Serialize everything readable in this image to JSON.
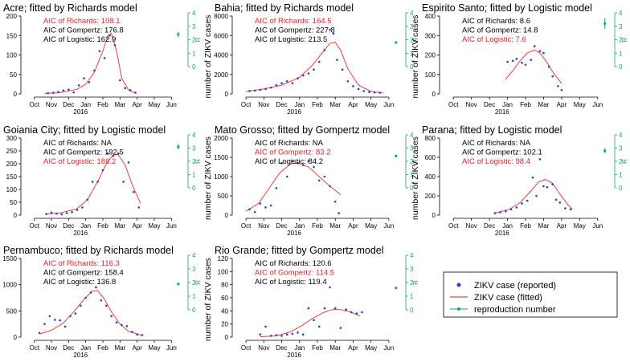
{
  "figure": {
    "month_labels": [
      "Oct",
      "Nov",
      "Dec",
      "Jan",
      "Feb",
      "Mar",
      "Apr",
      "May",
      "Jun"
    ],
    "year_label": "2016",
    "y_axis_label": "number of ZIKV cases",
    "r_axis_label": "R",
    "r_ticks": [
      "0",
      "1",
      "2",
      "3",
      "4"
    ],
    "colors": {
      "points": "#2b3fc8",
      "fit": "#e8404a",
      "best": "#e8202a",
      "r_axis": "#1aa36a",
      "axis": "#000000"
    }
  },
  "legend": {
    "reported": "ZIKV case (reported)",
    "fitted": "ZIKV case (fitted)",
    "reproduction": "reproduction number"
  },
  "chart_data": [
    {
      "type": "scatter",
      "title": "Acre; fitted by Richards model",
      "ylim": [
        0,
        200
      ],
      "yticks": [
        0,
        50,
        100,
        150,
        200
      ],
      "aic": [
        "AIC of Richards: 108.1",
        "AIC of Gompertz: 176.8",
        "AIC of Logistic: 162.9"
      ],
      "best_index": 0,
      "points": [
        [
          1.3,
          2
        ],
        [
          1.6,
          3
        ],
        [
          1.9,
          5
        ],
        [
          2.2,
          9
        ],
        [
          2.5,
          11
        ],
        [
          2.8,
          4
        ],
        [
          3.1,
          22
        ],
        [
          3.4,
          40
        ],
        [
          3.7,
          30
        ],
        [
          4.0,
          60
        ],
        [
          4.3,
          110
        ],
        [
          4.6,
          92
        ],
        [
          4.9,
          150
        ],
        [
          5.2,
          125
        ],
        [
          5.5,
          35
        ],
        [
          5.8,
          15
        ],
        [
          6.1,
          10
        ],
        [
          6.4,
          3
        ]
      ],
      "fit": [
        [
          1.1,
          1
        ],
        [
          2,
          3
        ],
        [
          3,
          12
        ],
        [
          3.5,
          25
        ],
        [
          4,
          55
        ],
        [
          4.5,
          110
        ],
        [
          4.8,
          150
        ],
        [
          5.0,
          155
        ],
        [
          5.3,
          110
        ],
        [
          5.6,
          40
        ],
        [
          6,
          10
        ],
        [
          6.4,
          2
        ]
      ],
      "r": {
        "value": 2.4,
        "low": 2.2,
        "high": 2.6,
        "x": 8.9
      }
    },
    {
      "type": "scatter",
      "title": "Bahia; fitted by Richards model",
      "ylim": [
        0,
        8000
      ],
      "yticks": [
        0,
        2000,
        4000,
        6000,
        8000
      ],
      "aic": [
        "AIC of Richards: 164.5",
        "AIC of Gompertz: 227.8",
        "AIC of Logistic: 213.5"
      ],
      "best_index": 0,
      "points": [
        [
          0.7,
          300
        ],
        [
          1.0,
          350
        ],
        [
          1.3,
          420
        ],
        [
          1.6,
          500
        ],
        [
          1.9,
          650
        ],
        [
          2.2,
          900
        ],
        [
          2.5,
          1100
        ],
        [
          2.8,
          1300
        ],
        [
          3.1,
          1100
        ],
        [
          3.4,
          1600
        ],
        [
          3.7,
          1900
        ],
        [
          4.0,
          2100
        ],
        [
          4.3,
          2500
        ],
        [
          4.6,
          3300
        ],
        [
          4.9,
          4500
        ],
        [
          5.2,
          6600
        ],
        [
          5.4,
          6200
        ],
        [
          5.6,
          3500
        ],
        [
          5.9,
          2500
        ],
        [
          6.2,
          1300
        ],
        [
          6.5,
          800
        ],
        [
          6.8,
          500
        ],
        [
          7.1,
          300
        ],
        [
          7.4,
          200
        ],
        [
          7.7,
          150
        ],
        [
          8.0,
          120
        ]
      ],
      "fit": [
        [
          0.5,
          250
        ],
        [
          1.5,
          500
        ],
        [
          2.5,
          900
        ],
        [
          3.5,
          1700
        ],
        [
          4.2,
          2900
        ],
        [
          4.8,
          4300
        ],
        [
          5.2,
          5200
        ],
        [
          5.5,
          5300
        ],
        [
          5.8,
          4500
        ],
        [
          6.2,
          2600
        ],
        [
          6.8,
          900
        ],
        [
          7.5,
          250
        ],
        [
          8.2,
          80
        ]
      ],
      "r": {
        "value": 1.8,
        "low": 1.75,
        "high": 1.85,
        "x": 8.9
      }
    },
    {
      "type": "scatter",
      "title": "Espirito Santo; fitted by Logistic model",
      "ylim": [
        0,
        400
      ],
      "yticks": [
        0,
        100,
        200,
        300,
        400
      ],
      "aic": [
        "AIC of Richards: 8.6",
        "AIC of Gompertz: 14.8",
        "AIC of Logistic: 7.6"
      ],
      "best_index": 2,
      "points": [
        [
          3.5,
          165
        ],
        [
          3.8,
          170
        ],
        [
          4.0,
          180
        ],
        [
          4.3,
          160
        ],
        [
          4.5,
          150
        ],
        [
          4.8,
          175
        ],
        [
          5.0,
          245
        ],
        [
          5.3,
          220
        ],
        [
          5.5,
          210
        ],
        [
          5.8,
          140
        ],
        [
          6.0,
          90
        ],
        [
          6.3,
          40
        ],
        [
          6.5,
          20
        ]
      ],
      "fit": [
        [
          3.4,
          75
        ],
        [
          3.8,
          120
        ],
        [
          4.2,
          170
        ],
        [
          4.6,
          210
        ],
        [
          5.0,
          225
        ],
        [
          5.3,
          210
        ],
        [
          5.7,
          160
        ],
        [
          6.1,
          100
        ],
        [
          6.5,
          55
        ]
      ],
      "r": {
        "value": 3.2,
        "low": 2.8,
        "high": 3.6,
        "x": 8.9
      }
    },
    {
      "type": "scatter",
      "title": "Goiania City; fitted by Logistic model",
      "ylim": [
        0,
        300
      ],
      "yticks": [
        0,
        50,
        100,
        150,
        200,
        250,
        300
      ],
      "aic": [
        "AIC of Richards: NA",
        "AIC of Gompertz: 192.5",
        "AIC of Logistic: 186.2"
      ],
      "best_index": 2,
      "points": [
        [
          1.2,
          4
        ],
        [
          1.5,
          10
        ],
        [
          1.8,
          6
        ],
        [
          2.1,
          3
        ],
        [
          2.4,
          8
        ],
        [
          2.7,
          12
        ],
        [
          3.0,
          20
        ],
        [
          3.3,
          30
        ],
        [
          3.6,
          60
        ],
        [
          3.9,
          130
        ],
        [
          4.2,
          130
        ],
        [
          4.5,
          175
        ],
        [
          4.8,
          240
        ],
        [
          5.1,
          230
        ],
        [
          5.4,
          240
        ],
        [
          5.7,
          130
        ],
        [
          6.0,
          205
        ],
        [
          6.3,
          90
        ],
        [
          6.6,
          30
        ]
      ],
      "fit": [
        [
          1.2,
          4
        ],
        [
          2,
          8
        ],
        [
          3,
          25
        ],
        [
          3.6,
          60
        ],
        [
          4.2,
          130
        ],
        [
          4.7,
          200
        ],
        [
          5.1,
          235
        ],
        [
          5.4,
          235
        ],
        [
          5.8,
          195
        ],
        [
          6.2,
          120
        ],
        [
          6.7,
          45
        ]
      ],
      "r": {
        "value": 3.1,
        "low": 2.9,
        "high": 3.3,
        "x": 8.9
      }
    },
    {
      "type": "scatter",
      "title": "Mato Grosso; fitted by Gompertz model",
      "ylim": [
        0,
        2000
      ],
      "yticks": [
        0,
        500,
        1000,
        1500,
        2000
      ],
      "aic": [
        "AIC of Richards: NA",
        "AIC of Gompertz: 83.2",
        "AIC of Logistic: 84.2"
      ],
      "best_index": 1,
      "points": [
        [
          0.7,
          150
        ],
        [
          1.0,
          80
        ],
        [
          1.3,
          300
        ],
        [
          1.6,
          200
        ],
        [
          1.9,
          250
        ],
        [
          2.2,
          700
        ],
        [
          2.5,
          1350
        ],
        [
          2.8,
          1000
        ],
        [
          3.1,
          1400
        ],
        [
          3.4,
          1350
        ],
        [
          3.7,
          1300
        ],
        [
          4.0,
          1400
        ],
        [
          4.3,
          1250
        ],
        [
          4.6,
          900
        ],
        [
          4.9,
          1000
        ],
        [
          5.2,
          750
        ],
        [
          5.5,
          350
        ],
        [
          5.7,
          50
        ]
      ],
      "fit": [
        [
          0.5,
          100
        ],
        [
          1.2,
          300
        ],
        [
          1.8,
          700
        ],
        [
          2.4,
          1100
        ],
        [
          3.0,
          1330
        ],
        [
          3.4,
          1350
        ],
        [
          4.0,
          1250
        ],
        [
          4.6,
          1000
        ],
        [
          5.2,
          750
        ],
        [
          5.8,
          530
        ]
      ],
      "r": {
        "value": 2.4,
        "low": 2.3,
        "high": 2.5,
        "x": 8.9
      }
    },
    {
      "type": "scatter",
      "title": "Parana; fitted by Logistic model",
      "ylim": [
        0,
        800
      ],
      "yticks": [
        0,
        200,
        400,
        600,
        800
      ],
      "aic": [
        "AIC of Richards: NA",
        "AIC of Gompertz: 102.1",
        "AIC of Logistic: 98.4"
      ],
      "best_index": 2,
      "points": [
        [
          2.8,
          20
        ],
        [
          3.1,
          30
        ],
        [
          3.4,
          40
        ],
        [
          3.7,
          60
        ],
        [
          4.0,
          80
        ],
        [
          4.3,
          120
        ],
        [
          4.6,
          150
        ],
        [
          4.9,
          390
        ],
        [
          5.1,
          200
        ],
        [
          5.3,
          580
        ],
        [
          5.5,
          300
        ],
        [
          5.7,
          290
        ],
        [
          6.0,
          320
        ],
        [
          6.2,
          160
        ],
        [
          6.4,
          130
        ],
        [
          6.7,
          70
        ],
        [
          7.0,
          60
        ]
      ],
      "fit": [
        [
          2.8,
          20
        ],
        [
          3.6,
          60
        ],
        [
          4.2,
          130
        ],
        [
          4.8,
          250
        ],
        [
          5.2,
          340
        ],
        [
          5.6,
          370
        ],
        [
          6.0,
          330
        ],
        [
          6.4,
          220
        ],
        [
          6.8,
          120
        ],
        [
          7.1,
          60
        ]
      ],
      "r": {
        "value": 2.8,
        "low": 2.6,
        "high": 3.0,
        "x": 8.9
      }
    },
    {
      "type": "scatter",
      "title": "Pernambuco; fitted by Richards model",
      "ylim": [
        0,
        1500
      ],
      "yticks": [
        0,
        500,
        1000,
        1500
      ],
      "aic": [
        "AIC of Richards: 116.3",
        "AIC of Gompertz: 158.4",
        "AIC of Logistic: 136.8"
      ],
      "best_index": 0,
      "points": [
        [
          0.8,
          80
        ],
        [
          1.1,
          250
        ],
        [
          1.4,
          400
        ],
        [
          1.7,
          330
        ],
        [
          2.0,
          320
        ],
        [
          2.3,
          200
        ],
        [
          2.6,
          400
        ],
        [
          2.9,
          450
        ],
        [
          3.2,
          600
        ],
        [
          3.5,
          750
        ],
        [
          3.8,
          850
        ],
        [
          4.1,
          950
        ],
        [
          4.4,
          700
        ],
        [
          4.7,
          600
        ],
        [
          5.0,
          400
        ],
        [
          5.3,
          280
        ],
        [
          5.6,
          230
        ],
        [
          5.9,
          210
        ],
        [
          6.2,
          100
        ],
        [
          6.5,
          50
        ],
        [
          6.8,
          40
        ]
      ],
      "fit": [
        [
          0.8,
          60
        ],
        [
          1.5,
          130
        ],
        [
          2.2,
          270
        ],
        [
          2.8,
          480
        ],
        [
          3.4,
          720
        ],
        [
          3.9,
          880
        ],
        [
          4.2,
          890
        ],
        [
          4.6,
          720
        ],
        [
          5.0,
          480
        ],
        [
          5.5,
          250
        ],
        [
          6.0,
          110
        ],
        [
          6.8,
          30
        ]
      ],
      "r": {
        "value": 1.9,
        "low": 1.8,
        "high": 2.0,
        "x": 8.9
      }
    },
    {
      "type": "scatter",
      "title": "Rio Grande; fitted by Gompertz model",
      "ylim": [
        0,
        120
      ],
      "yticks": [
        0,
        20,
        40,
        60,
        80,
        100,
        120
      ],
      "aic": [
        "AIC of Richards: 120.6",
        "AIC of Gompertz: 114.5",
        "AIC of Logistic: 119.4"
      ],
      "best_index": 1,
      "points": [
        [
          1.3,
          4
        ],
        [
          1.6,
          16
        ],
        [
          1.9,
          2
        ],
        [
          2.2,
          3
        ],
        [
          2.5,
          2
        ],
        [
          2.8,
          4
        ],
        [
          3.1,
          5
        ],
        [
          3.4,
          7
        ],
        [
          3.7,
          4
        ],
        [
          4.0,
          44
        ],
        [
          4.3,
          26
        ],
        [
          4.6,
          16
        ],
        [
          4.9,
          44
        ],
        [
          5.2,
          76
        ],
        [
          5.5,
          44
        ],
        [
          5.8,
          14
        ],
        [
          6.1,
          42
        ],
        [
          6.4,
          38
        ],
        [
          6.7,
          36
        ],
        [
          7.0,
          38
        ]
      ],
      "fit": [
        [
          1.3,
          0.5
        ],
        [
          2.2,
          2
        ],
        [
          3.0,
          8
        ],
        [
          3.6,
          17
        ],
        [
          4.2,
          28
        ],
        [
          4.8,
          37
        ],
        [
          5.3,
          42
        ],
        [
          5.8,
          42
        ],
        [
          6.4,
          38
        ],
        [
          6.9,
          32
        ]
      ],
      "r": {
        "value": 1.6,
        "low": 1.5,
        "high": 1.7,
        "x": 8.9
      }
    }
  ]
}
